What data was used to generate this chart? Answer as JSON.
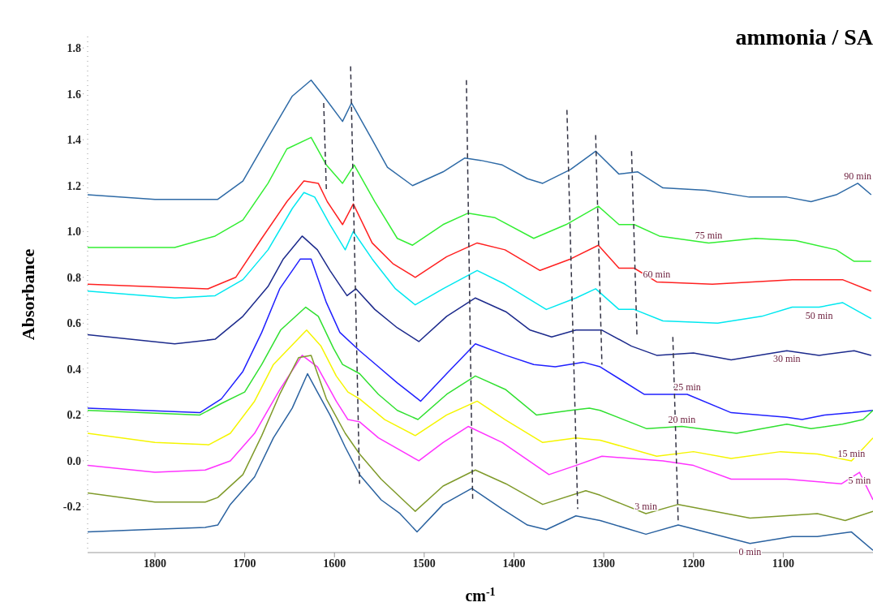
{
  "chart_data": {
    "type": "line",
    "title": "ammonia / SA",
    "xlabel": "cm$^{-1}$",
    "ylabel": "Absorbance",
    "xlim": [
      1875,
      1000
    ],
    "xticks": [
      1800,
      1700,
      1600,
      1500,
      1400,
      1300,
      1200,
      1100
    ],
    "ylim": [
      -0.4,
      1.85
    ],
    "yticks": [
      -0.2,
      {
        "value": 0,
        "label": "0.0"
      },
      0.2,
      0.4,
      0.6,
      0.8,
      {
        "value": 1,
        "label": "1.0"
      },
      1.2,
      1.4,
      1.6,
      1.8
    ],
    "marker": "none",
    "line_style": "solid",
    "series": [
      {
        "name": "90 min",
        "color": "#2e6aa6",
        "x": [
          1875,
          1800,
          1730,
          1702,
          1674,
          1647,
          1626,
          1612,
          1591,
          1581,
          1558,
          1541,
          1513,
          1479,
          1455,
          1437,
          1413,
          1385,
          1368,
          1337,
          1309,
          1283,
          1262,
          1234,
          1186,
          1138,
          1096,
          1069,
          1041,
          1017,
          1002
        ],
        "values": [
          1.16,
          1.14,
          1.14,
          1.22,
          1.41,
          1.59,
          1.66,
          1.59,
          1.48,
          1.56,
          1.4,
          1.28,
          1.2,
          1.26,
          1.32,
          1.31,
          1.29,
          1.23,
          1.21,
          1.27,
          1.35,
          1.25,
          1.26,
          1.19,
          1.18,
          1.15,
          1.15,
          1.13,
          1.16,
          1.21,
          1.16
        ]
      },
      {
        "name": "75 min",
        "color": "#33ee33",
        "x": [
          1875,
          1778,
          1733,
          1702,
          1674,
          1653,
          1626,
          1609,
          1591,
          1578,
          1555,
          1530,
          1513,
          1479,
          1451,
          1421,
          1378,
          1342,
          1306,
          1283,
          1266,
          1238,
          1183,
          1131,
          1086,
          1041,
          1021,
          1002
        ],
        "values": [
          0.93,
          0.93,
          0.98,
          1.05,
          1.21,
          1.36,
          1.41,
          1.29,
          1.21,
          1.29,
          1.13,
          0.97,
          0.94,
          1.03,
          1.08,
          1.06,
          0.97,
          1.03,
          1.11,
          1.03,
          1.03,
          0.98,
          0.95,
          0.97,
          0.96,
          0.92,
          0.87,
          0.87
        ]
      },
      {
        "name": "60 min",
        "color": "#ff2020",
        "x": [
          1875,
          1741,
          1710,
          1681,
          1653,
          1634,
          1618,
          1608,
          1591,
          1579,
          1558,
          1535,
          1510,
          1475,
          1441,
          1410,
          1371,
          1337,
          1306,
          1283,
          1266,
          1241,
          1179,
          1090,
          1034,
          1002
        ],
        "values": [
          0.77,
          0.75,
          0.8,
          0.97,
          1.13,
          1.22,
          1.21,
          1.13,
          1.03,
          1.12,
          0.95,
          0.86,
          0.8,
          0.89,
          0.95,
          0.92,
          0.83,
          0.88,
          0.94,
          0.84,
          0.84,
          0.78,
          0.77,
          0.79,
          0.79,
          0.74
        ]
      },
      {
        "name": "50 min",
        "color": "#00e8f0",
        "x": [
          1875,
          1778,
          1733,
          1702,
          1674,
          1647,
          1634,
          1622,
          1605,
          1588,
          1579,
          1558,
          1532,
          1510,
          1479,
          1441,
          1410,
          1364,
          1331,
          1309,
          1283,
          1266,
          1234,
          1173,
          1124,
          1090,
          1060,
          1034,
          1002
        ],
        "values": [
          0.74,
          0.71,
          0.72,
          0.79,
          0.92,
          1.1,
          1.17,
          1.15,
          1.03,
          0.92,
          1.0,
          0.88,
          0.75,
          0.68,
          0.75,
          0.83,
          0.77,
          0.66,
          0.71,
          0.75,
          0.66,
          0.66,
          0.61,
          0.6,
          0.63,
          0.67,
          0.67,
          0.69,
          0.62
        ]
      },
      {
        "name": "30 min",
        "color": "#1c2a8c",
        "x": [
          1875,
          1778,
          1733,
          1702,
          1674,
          1657,
          1636,
          1619,
          1605,
          1593,
          1586,
          1576,
          1555,
          1530,
          1506,
          1475,
          1443,
          1409,
          1382,
          1358,
          1331,
          1302,
          1269,
          1241,
          1200,
          1158,
          1096,
          1060,
          1021,
          1002
        ],
        "values": [
          0.55,
          0.51,
          0.53,
          0.63,
          0.76,
          0.88,
          0.98,
          0.92,
          0.83,
          0.76,
          0.72,
          0.75,
          0.66,
          0.58,
          0.52,
          0.63,
          0.71,
          0.65,
          0.57,
          0.54,
          0.57,
          0.57,
          0.5,
          0.46,
          0.47,
          0.44,
          0.48,
          0.46,
          0.48,
          0.46
        ]
      },
      {
        "name": "25 min",
        "color": "#2020ff",
        "x": [
          1875,
          1750,
          1726,
          1702,
          1681,
          1661,
          1638,
          1626,
          1609,
          1594,
          1572,
          1551,
          1530,
          1504,
          1475,
          1443,
          1409,
          1378,
          1354,
          1323,
          1304,
          1255,
          1207,
          1158,
          1096,
          1079,
          1054,
          1023,
          1000
        ],
        "values": [
          0.23,
          0.21,
          0.27,
          0.39,
          0.56,
          0.75,
          0.88,
          0.88,
          0.69,
          0.56,
          0.48,
          0.41,
          0.34,
          0.26,
          0.38,
          0.51,
          0.46,
          0.42,
          0.41,
          0.43,
          0.41,
          0.29,
          0.29,
          0.21,
          0.19,
          0.18,
          0.2,
          0.21,
          0.22
        ]
      },
      {
        "name": "20 min",
        "color": "#30e030",
        "x": [
          1875,
          1750,
          1726,
          1700,
          1681,
          1660,
          1632,
          1618,
          1601,
          1591,
          1572,
          1551,
          1530,
          1507,
          1475,
          1443,
          1409,
          1375,
          1337,
          1316,
          1304,
          1252,
          1213,
          1152,
          1096,
          1069,
          1034,
          1011,
          1000
        ],
        "values": [
          0.22,
          0.2,
          0.25,
          0.3,
          0.42,
          0.57,
          0.67,
          0.63,
          0.49,
          0.42,
          0.38,
          0.29,
          0.22,
          0.18,
          0.29,
          0.37,
          0.31,
          0.2,
          0.22,
          0.23,
          0.22,
          0.14,
          0.15,
          0.12,
          0.16,
          0.14,
          0.16,
          0.18,
          0.22
        ]
      },
      {
        "name": "15 min",
        "color": "#f5f500",
        "x": [
          1875,
          1800,
          1740,
          1716,
          1689,
          1668,
          1631,
          1615,
          1598,
          1585,
          1572,
          1544,
          1510,
          1475,
          1441,
          1410,
          1368,
          1331,
          1304,
          1241,
          1200,
          1158,
          1103,
          1062,
          1024,
          1000
        ],
        "values": [
          0.12,
          0.08,
          0.07,
          0.12,
          0.26,
          0.42,
          0.57,
          0.5,
          0.37,
          0.3,
          0.27,
          0.18,
          0.11,
          0.2,
          0.26,
          0.18,
          0.08,
          0.1,
          0.09,
          0.02,
          0.04,
          0.01,
          0.04,
          0.03,
          0.0,
          0.1
        ]
      },
      {
        "name": "5 min",
        "color": "#ff33ff",
        "x": [
          1875,
          1800,
          1744,
          1716,
          1689,
          1661,
          1636,
          1619,
          1598,
          1585,
          1572,
          1551,
          1506,
          1479,
          1451,
          1413,
          1361,
          1331,
          1302,
          1234,
          1200,
          1158,
          1096,
          1035,
          1015,
          1000
        ],
        "values": [
          -0.02,
          -0.05,
          -0.04,
          0.0,
          0.12,
          0.31,
          0.46,
          0.41,
          0.26,
          0.18,
          0.17,
          0.1,
          0.0,
          0.08,
          0.15,
          0.08,
          -0.06,
          -0.02,
          0.02,
          0.0,
          -0.02,
          -0.08,
          -0.08,
          -0.1,
          -0.05,
          -0.17
        ]
      },
      {
        "name": "3 min",
        "color": "#7f9a2a",
        "x": [
          1875,
          1800,
          1744,
          1730,
          1702,
          1681,
          1661,
          1640,
          1626,
          1609,
          1588,
          1572,
          1548,
          1510,
          1479,
          1443,
          1409,
          1368,
          1320,
          1304,
          1253,
          1217,
          1137,
          1062,
          1031,
          1000
        ],
        "values": [
          -0.14,
          -0.18,
          -0.18,
          -0.16,
          -0.06,
          0.11,
          0.29,
          0.45,
          0.46,
          0.27,
          0.12,
          0.03,
          -0.08,
          -0.22,
          -0.11,
          -0.04,
          -0.1,
          -0.19,
          -0.13,
          -0.15,
          -0.23,
          -0.19,
          -0.25,
          -0.23,
          -0.26,
          -0.22
        ]
      },
      {
        "name": "0 min",
        "color": "#2a62a0",
        "x": [
          1875,
          1812,
          1744,
          1730,
          1716,
          1689,
          1668,
          1647,
          1630,
          1619,
          1605,
          1588,
          1572,
          1548,
          1527,
          1508,
          1479,
          1447,
          1413,
          1385,
          1364,
          1331,
          1304,
          1253,
          1217,
          1137,
          1090,
          1062,
          1024,
          1000
        ],
        "values": [
          -0.31,
          -0.3,
          -0.29,
          -0.28,
          -0.19,
          -0.07,
          0.1,
          0.23,
          0.38,
          0.3,
          0.2,
          0.06,
          -0.06,
          -0.17,
          -0.23,
          -0.31,
          -0.19,
          -0.12,
          -0.21,
          -0.28,
          -0.3,
          -0.24,
          -0.26,
          -0.32,
          -0.28,
          -0.36,
          -0.33,
          -0.33,
          -0.31,
          -0.39
        ]
      },
      {
        "color": "#333344",
        "line_style": "dashed",
        "x": [
          1612,
          1609
        ],
        "values": [
          1.56,
          1.18
        ]
      },
      {
        "color": "#333344",
        "line_style": "dashed",
        "x": [
          1582,
          1572
        ],
        "values": [
          1.72,
          -0.1
        ]
      },
      {
        "color": "#333344",
        "line_style": "dashed",
        "x": [
          1453,
          1446
        ],
        "values": [
          1.66,
          -0.17
        ]
      },
      {
        "color": "#333344",
        "line_style": "dashed",
        "x": [
          1341,
          1329
        ],
        "values": [
          1.53,
          -0.21
        ]
      },
      {
        "color": "#333344",
        "line_style": "dashed",
        "x": [
          1309,
          1302
        ],
        "values": [
          1.42,
          0.42
        ]
      },
      {
        "color": "#333344",
        "line_style": "dashed",
        "x": [
          1269,
          1263
        ],
        "values": [
          1.35,
          0.55
        ]
      },
      {
        "color": "#333344",
        "line_style": "dashed",
        "x": [
          1223,
          1217
        ],
        "values": [
          0.54,
          -0.27
        ]
      }
    ]
  }
}
